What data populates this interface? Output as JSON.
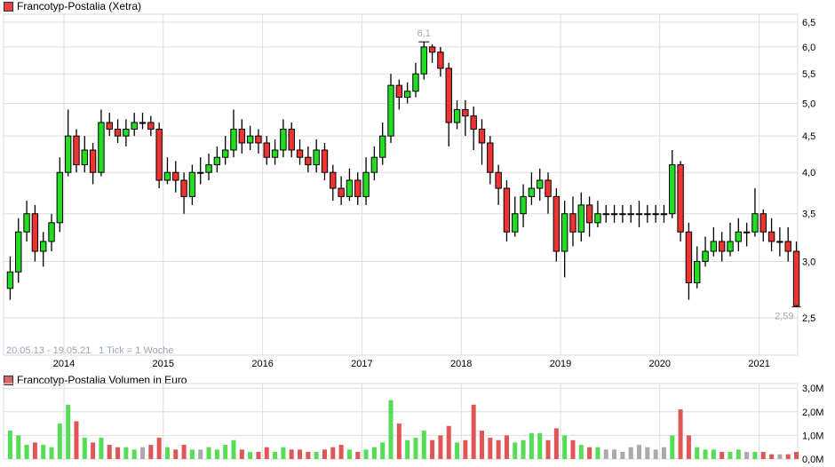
{
  "chart_data": [
    {
      "type": "candlestick",
      "title": "Francotyp-Postalia (Xetra)",
      "legend_color": "#e84141",
      "period_label": "20.05.13 - 19.05.21",
      "tick_label": "1 Tick = 1 Woche",
      "scale": "log",
      "ylim": [
        2.4,
        6.6
      ],
      "y_ticks": [
        "2,5",
        "3,0",
        "3,5",
        "4,0",
        "4,5",
        "5,0",
        "5,5",
        "6,0",
        "6,5"
      ],
      "y_tick_values": [
        2.5,
        3.0,
        3.5,
        4.0,
        4.5,
        5.0,
        5.5,
        6.0,
        6.5
      ],
      "x_ticks": [
        "2014",
        "2015",
        "2016",
        "2017",
        "2018",
        "2019",
        "2020",
        "2021"
      ],
      "start_month": "2013-06",
      "max_label": "6,1",
      "min_label": "2,59",
      "colors": {
        "up": "#22dd22",
        "down": "#ee3333",
        "grid": "#dddddd"
      },
      "open": [
        2.75,
        2.9,
        3.3,
        3.5,
        3.1,
        3.2,
        3.4,
        4.0,
        4.5,
        4.1,
        4.3,
        4.0,
        4.7,
        4.6,
        4.5,
        4.6,
        4.7,
        4.7,
        4.6,
        3.9,
        4.0,
        3.9,
        3.7,
        4.0,
        4.0,
        4.1,
        4.2,
        4.3,
        4.6,
        4.4,
        4.5,
        4.4,
        4.2,
        4.3,
        4.6,
        4.3,
        4.2,
        4.1,
        4.3,
        4.0,
        3.8,
        3.7,
        3.9,
        3.7,
        4.0,
        4.2,
        4.5,
        5.3,
        5.1,
        5.2,
        5.5,
        6.0,
        5.9,
        5.6,
        4.7,
        4.9,
        4.8,
        4.6,
        4.4,
        4.0,
        3.8,
        3.3,
        3.5,
        3.7,
        3.8,
        3.9,
        3.7,
        3.1,
        3.5,
        3.3,
        3.6,
        3.4,
        3.5,
        3.5,
        3.5,
        3.5,
        3.5,
        3.5,
        3.5,
        3.5,
        3.5,
        4.1,
        3.3,
        2.8,
        3.0,
        3.1,
        3.2,
        3.1,
        3.2,
        3.3,
        3.3,
        3.5,
        3.3,
        3.2,
        3.2,
        3.1
      ],
      "high": [
        3.05,
        3.45,
        3.65,
        3.6,
        3.3,
        3.5,
        4.2,
        4.9,
        4.6,
        4.5,
        4.4,
        4.9,
        4.85,
        4.75,
        4.75,
        4.85,
        4.85,
        4.8,
        4.7,
        4.2,
        4.15,
        4.0,
        4.1,
        4.2,
        4.25,
        4.35,
        4.5,
        4.9,
        4.75,
        4.65,
        4.6,
        4.5,
        4.45,
        4.75,
        4.7,
        4.45,
        4.35,
        4.45,
        4.4,
        4.1,
        3.95,
        4.05,
        4.0,
        4.2,
        4.35,
        4.7,
        5.5,
        5.4,
        5.35,
        5.7,
        6.1,
        6.05,
        6.0,
        5.7,
        5.05,
        5.05,
        4.95,
        4.75,
        4.5,
        4.1,
        3.9,
        3.7,
        3.85,
        4.0,
        4.05,
        4.0,
        3.8,
        3.65,
        3.7,
        3.75,
        3.7,
        3.65,
        3.6,
        3.6,
        3.6,
        3.6,
        3.65,
        3.6,
        3.6,
        3.6,
        4.3,
        4.15,
        3.4,
        3.15,
        3.25,
        3.35,
        3.3,
        3.4,
        3.45,
        3.4,
        3.8,
        3.55,
        3.45,
        3.35,
        3.35,
        3.2
      ],
      "low": [
        2.65,
        2.8,
        3.2,
        3.0,
        2.95,
        3.1,
        3.3,
        3.95,
        4.0,
        4.0,
        3.85,
        3.95,
        4.5,
        4.4,
        4.35,
        4.5,
        4.6,
        4.5,
        3.8,
        3.85,
        3.75,
        3.5,
        3.6,
        3.85,
        3.9,
        4.0,
        4.1,
        4.2,
        4.25,
        4.3,
        4.25,
        4.1,
        4.1,
        4.2,
        4.2,
        4.1,
        4.0,
        4.0,
        3.9,
        3.65,
        3.6,
        3.65,
        3.6,
        3.6,
        3.9,
        4.1,
        4.4,
        4.9,
        5.0,
        5.1,
        5.4,
        5.7,
        5.45,
        4.35,
        4.6,
        4.5,
        4.3,
        4.1,
        3.85,
        3.6,
        3.2,
        3.25,
        3.35,
        3.6,
        3.65,
        3.5,
        3.0,
        2.85,
        3.15,
        3.2,
        3.25,
        3.35,
        3.4,
        3.4,
        3.4,
        3.4,
        3.35,
        3.4,
        3.4,
        3.4,
        3.45,
        3.2,
        2.65,
        2.75,
        2.95,
        3.05,
        3.0,
        3.05,
        3.1,
        3.15,
        3.25,
        3.2,
        3.1,
        3.05,
        3.0,
        2.59
      ],
      "close": [
        2.9,
        3.3,
        3.5,
        3.1,
        3.2,
        3.4,
        4.0,
        4.5,
        4.1,
        4.3,
        4.0,
        4.7,
        4.6,
        4.5,
        4.6,
        4.7,
        4.7,
        4.6,
        3.9,
        4.0,
        3.9,
        3.7,
        4.0,
        4.0,
        4.1,
        4.2,
        4.3,
        4.6,
        4.4,
        4.5,
        4.4,
        4.2,
        4.3,
        4.6,
        4.3,
        4.2,
        4.1,
        4.3,
        4.0,
        3.8,
        3.7,
        3.9,
        3.7,
        4.0,
        4.2,
        4.5,
        5.3,
        5.1,
        5.2,
        5.5,
        6.0,
        5.9,
        5.6,
        4.7,
        4.9,
        4.8,
        4.6,
        4.4,
        4.0,
        3.8,
        3.3,
        3.5,
        3.7,
        3.8,
        3.9,
        3.7,
        3.1,
        3.5,
        3.3,
        3.6,
        3.4,
        3.5,
        3.5,
        3.5,
        3.5,
        3.5,
        3.5,
        3.5,
        3.5,
        3.5,
        4.1,
        3.3,
        2.8,
        3.0,
        3.1,
        3.2,
        3.1,
        3.2,
        3.3,
        3.3,
        3.5,
        3.3,
        3.2,
        3.2,
        3.1,
        2.6
      ]
    },
    {
      "type": "bar",
      "title": "Francotyp-Postalia Volumen in Euro",
      "legend_color": "#d96666",
      "ylim": [
        0,
        3.0
      ],
      "y_ticks": [
        "0,0M",
        "1,0M",
        "2,0M",
        "3,0M"
      ],
      "y_tick_values": [
        0,
        1,
        2,
        3
      ],
      "values": [
        1.2,
        1.0,
        0.6,
        0.7,
        0.6,
        0.5,
        1.5,
        2.3,
        1.6,
        0.9,
        0.7,
        0.9,
        0.6,
        0.5,
        0.5,
        0.4,
        0.5,
        0.6,
        0.9,
        0.5,
        0.4,
        0.6,
        0.4,
        0.4,
        0.5,
        0.4,
        0.6,
        0.8,
        0.4,
        0.3,
        0.3,
        0.5,
        0.3,
        0.5,
        0.4,
        0.4,
        0.3,
        0.3,
        0.4,
        0.5,
        0.6,
        0.4,
        0.3,
        0.4,
        0.5,
        0.7,
        2.5,
        1.5,
        0.8,
        0.9,
        1.2,
        0.8,
        1.0,
        1.4,
        0.7,
        0.8,
        2.3,
        1.2,
        0.9,
        0.8,
        1.0,
        0.7,
        0.8,
        1.1,
        1.1,
        0.8,
        1.3,
        1.0,
        0.8,
        0.6,
        0.5,
        0.5,
        0.4,
        0.4,
        0.3,
        0.5,
        0.6,
        0.5,
        0.4,
        0.5,
        1.0,
        2.1,
        1.0,
        0.5,
        0.4,
        0.4,
        0.3,
        0.3,
        0.4,
        0.3,
        0.3,
        0.3,
        0.2,
        0.2,
        0.2,
        0.3
      ]
    }
  ]
}
